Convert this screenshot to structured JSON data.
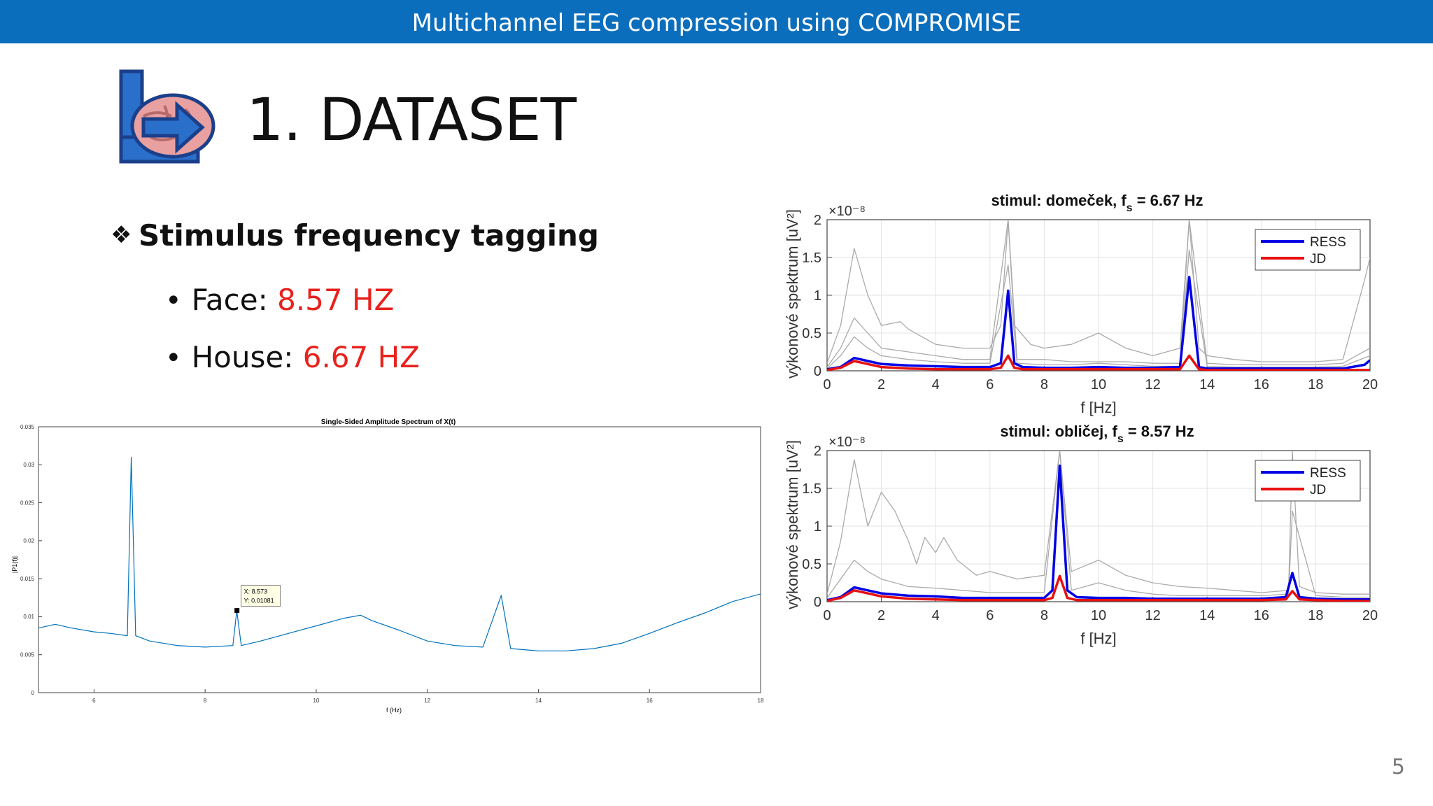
{
  "header": {
    "title": "Multichannel EEG compression using COMPROMISE"
  },
  "slide": {
    "title": "1. DATASET",
    "bullet": "Stimulus frequency tagging",
    "items": [
      {
        "label": "Face: ",
        "value": "8.57 HZ"
      },
      {
        "label": "House: ",
        "value": "6.67 HZ"
      }
    ],
    "page_number": "5",
    "accent_color": "#e8211d",
    "header_color": "#0a6ebd"
  },
  "chart_data": [
    {
      "type": "line",
      "title": "Single-Sided Amplitude Spectrum of X(t)",
      "xlabel": "f (Hz)",
      "ylabel": "|P1(f)|",
      "xlim": [
        5,
        18
      ],
      "ylim": [
        0,
        0.035
      ],
      "x_ticks": [
        "6",
        "8",
        "10",
        "12",
        "14",
        "16",
        "18"
      ],
      "y_ticks": [
        "0",
        "0.005",
        "0.01",
        "0.015",
        "0.02",
        "0.025",
        "0.03",
        "0.035"
      ],
      "grid": false,
      "datatip": {
        "x_text": "X: 8.573",
        "y_text": "Y: 0.01081",
        "x": 8.573,
        "y": 0.01081
      },
      "series": [
        {
          "color": "#0072bd",
          "x": [
            5,
            5.3,
            5.6,
            6,
            6.3,
            6.6,
            6.67,
            6.75,
            7,
            7.5,
            8,
            8.5,
            8.57,
            8.65,
            9,
            9.5,
            10,
            10.5,
            10.8,
            11,
            11.5,
            12,
            12.5,
            13,
            13.33,
            13.5,
            14,
            14.5,
            15,
            15.5,
            16,
            16.5,
            17,
            17.5,
            18
          ],
          "y": [
            0.0085,
            0.009,
            0.0085,
            0.008,
            0.0078,
            0.0075,
            0.031,
            0.0075,
            0.0068,
            0.0062,
            0.006,
            0.0062,
            0.0108,
            0.0062,
            0.0068,
            0.0078,
            0.0088,
            0.0098,
            0.0102,
            0.0095,
            0.0082,
            0.0068,
            0.0062,
            0.006,
            0.0128,
            0.0058,
            0.0055,
            0.0055,
            0.0058,
            0.0065,
            0.0078,
            0.0092,
            0.0105,
            0.012,
            0.013
          ]
        }
      ]
    },
    {
      "type": "line",
      "title": "stimul: domeček, f",
      "title_sub": "s",
      "title_suffix": " = 6.67 Hz",
      "xlabel": "f [Hz]",
      "ylabel": "výkonové spektrum [uV²]",
      "exponent": "×10⁻⁸",
      "xlim": [
        0,
        20
      ],
      "ylim": [
        0,
        2
      ],
      "x_ticks": [
        "0",
        "2",
        "4",
        "6",
        "8",
        "10",
        "12",
        "14",
        "16",
        "18",
        "20"
      ],
      "y_ticks": [
        "0",
        "0.5",
        "1",
        "1.5",
        "2"
      ],
      "grid": true,
      "legend": {
        "position": "top-right",
        "entries": [
          "RESS",
          "JD"
        ]
      },
      "series": [
        {
          "name": "RESS",
          "color": "#0000e6",
          "x": [
            0,
            0.5,
            1,
            1.5,
            2,
            3,
            4,
            5,
            6,
            6.4,
            6.67,
            6.9,
            7.2,
            8,
            9,
            10,
            11,
            12,
            13,
            13.34,
            13.7,
            14,
            15,
            16,
            17,
            18,
            19,
            19.8,
            20
          ],
          "y": [
            0.02,
            0.05,
            0.17,
            0.13,
            0.09,
            0.07,
            0.06,
            0.05,
            0.05,
            0.1,
            1.06,
            0.1,
            0.05,
            0.04,
            0.04,
            0.05,
            0.04,
            0.04,
            0.05,
            1.24,
            0.05,
            0.03,
            0.03,
            0.03,
            0.03,
            0.03,
            0.03,
            0.08,
            0.14
          ]
        },
        {
          "name": "JD",
          "color": "#e81010",
          "x": [
            0,
            0.5,
            1,
            1.5,
            2,
            3,
            4,
            5,
            6,
            6.4,
            6.67,
            6.9,
            7.2,
            8,
            9,
            10,
            11,
            12,
            13,
            13.34,
            13.7,
            14,
            15,
            16,
            17,
            18,
            19,
            20
          ],
          "y": [
            0.01,
            0.04,
            0.13,
            0.09,
            0.05,
            0.03,
            0.02,
            0.02,
            0.02,
            0.04,
            0.2,
            0.04,
            0.02,
            0.02,
            0.02,
            0.02,
            0.02,
            0.02,
            0.02,
            0.2,
            0.02,
            0.01,
            0.01,
            0.01,
            0.01,
            0.01,
            0.01,
            0.01
          ]
        }
      ],
      "background_series": [
        {
          "color": "#aaaaaa",
          "x": [
            0,
            0.5,
            1,
            1.5,
            2,
            2.7,
            3,
            3.5,
            4,
            5,
            6,
            6.4,
            6.67,
            6.9,
            7.5,
            8,
            9,
            10,
            11,
            12,
            13,
            13.34,
            13.7,
            14,
            15,
            16,
            17,
            18,
            19,
            19.8,
            20
          ],
          "y": [
            0.1,
            0.6,
            1.62,
            1.0,
            0.6,
            0.65,
            0.55,
            0.45,
            0.35,
            0.3,
            0.3,
            0.6,
            2.0,
            0.6,
            0.35,
            0.3,
            0.35,
            0.5,
            0.3,
            0.2,
            0.3,
            2.0,
            0.3,
            0.2,
            0.15,
            0.12,
            0.12,
            0.12,
            0.15,
            1.2,
            1.5
          ]
        },
        {
          "color": "#aaaaaa",
          "x": [
            0,
            0.5,
            1,
            1.5,
            2,
            3,
            4,
            5,
            6,
            6.67,
            7,
            8,
            9,
            10,
            11,
            12,
            13,
            13.34,
            14,
            15,
            16,
            17,
            18,
            19,
            20
          ],
          "y": [
            0.05,
            0.3,
            0.7,
            0.5,
            0.3,
            0.25,
            0.2,
            0.15,
            0.15,
            2.0,
            0.15,
            0.15,
            0.12,
            0.12,
            0.12,
            0.1,
            0.1,
            2.0,
            0.1,
            0.08,
            0.08,
            0.08,
            0.08,
            0.1,
            0.3
          ]
        },
        {
          "color": "#aaaaaa",
          "x": [
            0,
            0.5,
            1,
            1.5,
            2,
            3,
            4,
            5,
            6,
            6.67,
            7,
            8,
            9,
            10,
            11,
            12,
            13,
            13.34,
            14,
            15,
            16,
            17,
            18,
            19,
            20
          ],
          "y": [
            0.03,
            0.2,
            0.45,
            0.3,
            0.2,
            0.15,
            0.12,
            0.1,
            0.1,
            1.4,
            0.1,
            0.08,
            0.08,
            0.1,
            0.08,
            0.06,
            0.06,
            1.6,
            0.06,
            0.05,
            0.05,
            0.05,
            0.05,
            0.06,
            0.2
          ]
        }
      ]
    },
    {
      "type": "line",
      "title": "stimul: obličej, f",
      "title_sub": "s",
      "title_suffix": " = 8.57 Hz",
      "xlabel": "f [Hz]",
      "ylabel": "výkonové spektrum [uV²]",
      "exponent": "×10⁻⁸",
      "xlim": [
        0,
        20
      ],
      "ylim": [
        0,
        2
      ],
      "x_ticks": [
        "0",
        "2",
        "4",
        "6",
        "8",
        "10",
        "12",
        "14",
        "16",
        "18",
        "20"
      ],
      "y_ticks": [
        "0",
        "0.5",
        "1",
        "1.5",
        "2"
      ],
      "grid": true,
      "legend": {
        "position": "top-right",
        "entries": [
          "RESS",
          "JD"
        ]
      },
      "series": [
        {
          "name": "RESS",
          "color": "#0000e6",
          "x": [
            0,
            0.5,
            1,
            1.5,
            2,
            3,
            4,
            5,
            6,
            7,
            8,
            8.3,
            8.57,
            8.85,
            9.2,
            10,
            11,
            12,
            13,
            14,
            15,
            16,
            16.9,
            17.14,
            17.4,
            18,
            19,
            20
          ],
          "y": [
            0.02,
            0.06,
            0.19,
            0.15,
            0.11,
            0.08,
            0.07,
            0.05,
            0.05,
            0.05,
            0.05,
            0.15,
            1.8,
            0.15,
            0.06,
            0.05,
            0.05,
            0.04,
            0.04,
            0.04,
            0.04,
            0.04,
            0.06,
            0.38,
            0.06,
            0.04,
            0.03,
            0.03
          ]
        },
        {
          "name": "JD",
          "color": "#e81010",
          "x": [
            0,
            0.5,
            1,
            1.5,
            2,
            3,
            4,
            5,
            6,
            7,
            8,
            8.3,
            8.57,
            8.85,
            9.2,
            10,
            11,
            12,
            13,
            14,
            15,
            16,
            16.9,
            17.14,
            17.4,
            18,
            19,
            20
          ],
          "y": [
            0.01,
            0.05,
            0.15,
            0.11,
            0.07,
            0.04,
            0.03,
            0.02,
            0.02,
            0.02,
            0.02,
            0.05,
            0.34,
            0.05,
            0.02,
            0.02,
            0.02,
            0.02,
            0.02,
            0.02,
            0.02,
            0.02,
            0.03,
            0.14,
            0.03,
            0.02,
            0.01,
            0.01
          ]
        }
      ],
      "background_series": [
        {
          "color": "#aaaaaa",
          "x": [
            0,
            0.5,
            1,
            1.5,
            2,
            2.5,
            3,
            3.3,
            3.6,
            4,
            4.3,
            4.8,
            5.5,
            6,
            7,
            8,
            8.57,
            9,
            10,
            11,
            12,
            13,
            14,
            15,
            16,
            17,
            17.14,
            17.4,
            18,
            19,
            20
          ],
          "y": [
            0.1,
            0.8,
            1.88,
            1.0,
            1.45,
            1.2,
            0.8,
            0.5,
            0.85,
            0.65,
            0.85,
            0.55,
            0.35,
            0.4,
            0.3,
            0.35,
            2.0,
            0.4,
            0.55,
            0.35,
            0.25,
            0.2,
            0.18,
            0.15,
            0.12,
            0.15,
            2.0,
            0.2,
            0.12,
            0.1,
            0.1
          ]
        },
        {
          "color": "#aaaaaa",
          "x": [
            0,
            0.5,
            1,
            1.5,
            2,
            3,
            4,
            5,
            6,
            7,
            8,
            8.57,
            9,
            10,
            11,
            12,
            13,
            14,
            15,
            16,
            17,
            17.14,
            18,
            19,
            20
          ],
          "y": [
            0.05,
            0.3,
            0.55,
            0.4,
            0.3,
            0.2,
            0.18,
            0.15,
            0.12,
            0.12,
            0.12,
            2.0,
            0.15,
            0.25,
            0.15,
            0.1,
            0.08,
            0.08,
            0.08,
            0.08,
            0.1,
            1.2,
            0.08,
            0.06,
            0.06
          ]
        }
      ]
    }
  ]
}
